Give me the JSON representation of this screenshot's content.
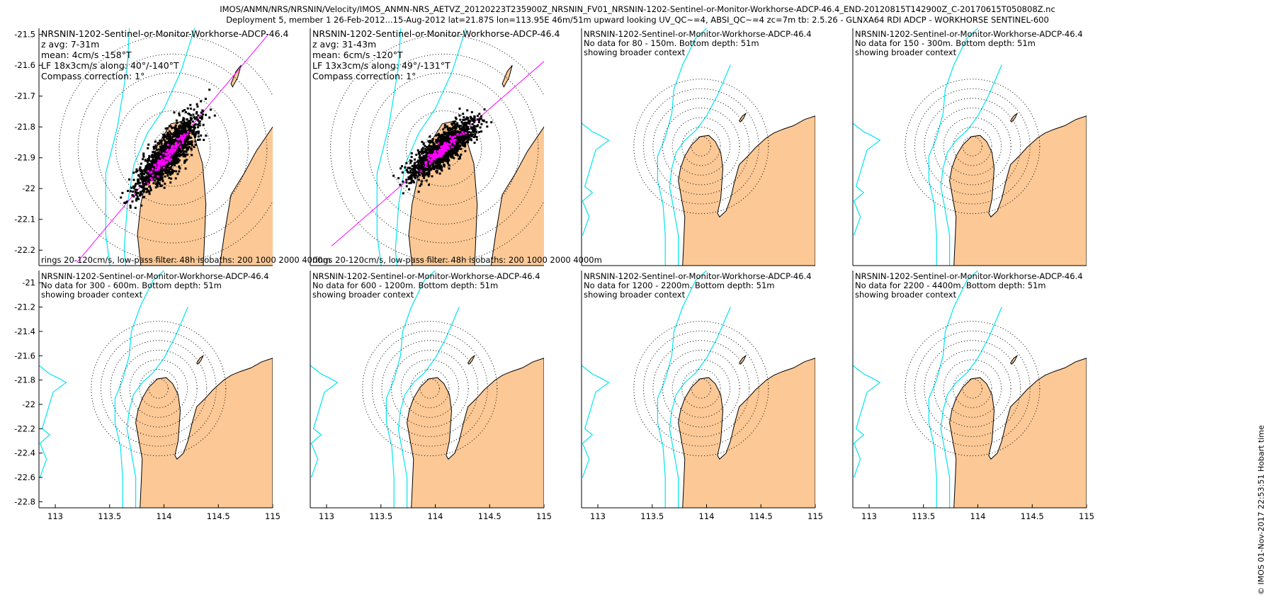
{
  "title": {
    "line1": "IMOS/ANMN/NRS/NRSNIN/Velocity/IMOS_ANMN-NRS_AETVZ_20120223T235900Z_NRSNIN_FV01_NRSNIN-1202-Sentinel-or-Monitor-Workhorse-ADCP-46.4_END-20120815T142900Z_C-20170615T050808Z.nc",
    "line2": "Deployment 5, member 1 26-Feb-2012...15-Aug-2012 lat=21.87S lon=113.95E 46m/51m upward looking UV_QC~=4, ABSI_QC~=4 zc=7m tb: 2.5.26 - GLNXA64 RDI ADCP - WORKHORSE SENTINEL-600"
  },
  "side_stamp": "© IMOS 01-Nov-2017 22:53:51 Hobart time",
  "colors": {
    "land": "#fcc996",
    "isobath": "#00e5ee",
    "scatter": "#000000",
    "lowpass": "#ff00ff",
    "axis_line": "#ff00ff"
  },
  "panels": [
    {
      "id": "p1",
      "lines": [
        "NRSNIN-1202-Sentinel-or-Monitor-Workhorse-ADCP-46.4",
        "z avg: 7-31m",
        "mean: 4cm/s -158°T",
        "LF 18x3cm/s along: 40°/-140°T",
        "Compass correction: 1°"
      ],
      "footer": "rings 20-120cm/s, low-pass filter: 48h isobaths: 200 1000 2000 4000m",
      "ylim": [
        -22.25,
        -21.48
      ],
      "yticks": [
        "-21.5",
        "-21.6",
        "-21.7",
        "-21.8",
        "-21.9",
        "-22",
        "-22.1",
        "-22.2"
      ],
      "ytickvals": [
        -21.5,
        -21.6,
        -21.7,
        -21.8,
        -21.9,
        -22.0,
        -22.1,
        -22.2
      ],
      "xlim": [
        113.15,
        114.55
      ],
      "has_data": true,
      "along_deg": 40,
      "center": [
        113.95,
        -21.87
      ]
    },
    {
      "id": "p2",
      "lines": [
        "NRSNIN-1202-Sentinel-or-Monitor-Workhorse-ADCP-46.4",
        "z avg: 31-43m",
        "mean: 6cm/s -120°T",
        "LF 13x3cm/s along: 49°/-131°T",
        "Compass correction: 1°"
      ],
      "footer": "rings 20-120cm/s, low-pass filter: 48h isobaths: 200 1000 2000 4000m",
      "ylim": [
        -22.25,
        -21.48
      ],
      "xlim": [
        113.15,
        114.55
      ],
      "has_data": true,
      "along_deg": 49,
      "center": [
        113.95,
        -21.87
      ]
    },
    {
      "id": "p3",
      "lines": [
        "NRSNIN-1202-Sentinel-or-Monitor-Workhorse-ADCP-46.4",
        "No data for 80 - 150m. Bottom depth: 51m",
        "showing broader context"
      ],
      "xlim": [
        112.85,
        115.0
      ],
      "ylim": [
        -22.85,
        -20.9
      ],
      "has_data": false,
      "center": [
        113.95,
        -21.87
      ]
    },
    {
      "id": "p4",
      "lines": [
        "NRSNIN-1202-Sentinel-or-Monitor-Workhorse-ADCP-46.4",
        "No data for 150 - 300m. Bottom depth: 51m",
        "showing broader context"
      ],
      "xlim": [
        112.85,
        115.0
      ],
      "ylim": [
        -22.85,
        -20.9
      ],
      "has_data": false,
      "center": [
        113.95,
        -21.87
      ]
    },
    {
      "id": "p5",
      "lines": [
        "NRSNIN-1202-Sentinel-or-Monitor-Workhorse-ADCP-46.4",
        "No data for 300 - 600m. Bottom depth: 51m",
        "showing broader context"
      ],
      "xlim": [
        112.85,
        115.0
      ],
      "ylim": [
        -22.85,
        -20.9
      ],
      "yticks": [
        "-21",
        "-21.2",
        "-21.4",
        "-21.6",
        "-21.8",
        "-22",
        "-22.2",
        "-22.4",
        "-22.6",
        "-22.8"
      ],
      "ytickvals": [
        -21.0,
        -21.2,
        -21.4,
        -21.6,
        -21.8,
        -22.0,
        -22.2,
        -22.4,
        -22.6,
        -22.8
      ],
      "xticks": [
        "113",
        "113.5",
        "114",
        "114.5",
        "115"
      ],
      "xtickvals": [
        113.0,
        113.5,
        114.0,
        114.5,
        115.0
      ],
      "has_data": false,
      "center": [
        113.95,
        -21.87
      ]
    },
    {
      "id": "p6",
      "lines": [
        "NRSNIN-1202-Sentinel-or-Monitor-Workhorse-ADCP-46.4",
        "No data for 600 - 1200m. Bottom depth: 51m",
        "showing broader context"
      ],
      "xlim": [
        112.85,
        115.0
      ],
      "ylim": [
        -22.85,
        -20.9
      ],
      "xticks": [
        "113",
        "113.5",
        "114",
        "114.5",
        "115"
      ],
      "xtickvals": [
        113.0,
        113.5,
        114.0,
        114.5,
        115.0
      ],
      "has_data": false,
      "center": [
        113.95,
        -21.87
      ]
    },
    {
      "id": "p7",
      "lines": [
        "NRSNIN-1202-Sentinel-or-Monitor-Workhorse-ADCP-46.4",
        "No data for 1200 - 2200m. Bottom depth: 51m",
        "showing broader context"
      ],
      "xlim": [
        112.85,
        115.0
      ],
      "ylim": [
        -22.85,
        -20.9
      ],
      "xticks": [
        "113",
        "113.5",
        "114",
        "114.5",
        "115"
      ],
      "xtickvals": [
        113.0,
        113.5,
        114.0,
        114.5,
        115.0
      ],
      "has_data": false,
      "center": [
        113.95,
        -21.87
      ]
    },
    {
      "id": "p8",
      "lines": [
        "NRSNIN-1202-Sentinel-or-Monitor-Workhorse-ADCP-46.4",
        "No data for 2200 - 4400m. Bottom depth: 51m",
        "showing broader context"
      ],
      "xlim": [
        112.85,
        115.0
      ],
      "ylim": [
        -22.85,
        -20.9
      ],
      "xticks": [
        "113",
        "113.5",
        "114",
        "114.5",
        "115"
      ],
      "xtickvals": [
        113.0,
        113.5,
        114.0,
        114.5,
        115.0
      ],
      "has_data": false,
      "center": [
        113.95,
        -21.87
      ]
    }
  ]
}
